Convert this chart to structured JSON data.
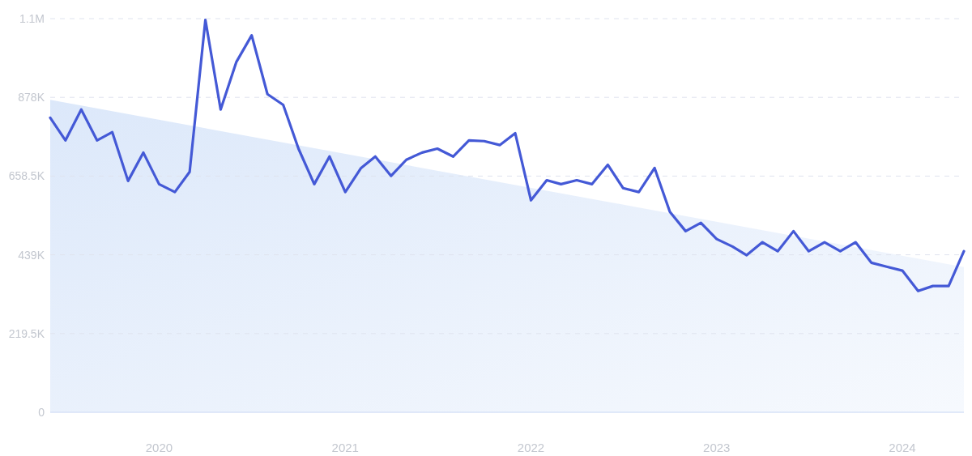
{
  "chart_data": {
    "type": "line",
    "x": [
      "2019-06",
      "2019-07",
      "2019-08",
      "2019-09",
      "2019-10",
      "2019-11",
      "2019-12",
      "2020-01",
      "2020-02",
      "2020-03",
      "2020-04",
      "2020-05",
      "2020-06",
      "2020-07",
      "2020-08",
      "2020-09",
      "2020-10",
      "2020-11",
      "2020-12",
      "2021-01",
      "2021-02",
      "2021-03",
      "2021-04",
      "2021-05",
      "2021-06",
      "2021-07",
      "2021-08",
      "2021-09",
      "2021-10",
      "2021-11",
      "2021-12",
      "2022-01",
      "2022-02",
      "2022-03",
      "2022-04",
      "2022-05",
      "2022-06",
      "2022-07",
      "2022-08",
      "2022-09",
      "2022-10",
      "2022-11",
      "2022-12",
      "2023-01",
      "2023-02",
      "2023-03",
      "2023-04",
      "2023-05",
      "2023-06",
      "2023-07",
      "2023-08",
      "2023-09",
      "2023-10",
      "2023-11",
      "2023-12",
      "2024-01",
      "2024-02",
      "2024-03",
      "2024-04",
      "2024-05"
    ],
    "series": [
      {
        "type": "area",
        "color": "#dce8fa",
        "x": [
          "2019-06",
          "2024-05"
        ],
        "values": [
          871000,
          405000
        ]
      },
      {
        "color": "#4459d6",
        "values": [
          821000,
          758000,
          844000,
          758000,
          781000,
          645000,
          724000,
          636000,
          614000,
          670000,
          1094000,
          844000,
          977000,
          1051000,
          887000,
          857000,
          735000,
          636000,
          713000,
          614000,
          681000,
          713000,
          659000,
          704000,
          724000,
          735000,
          713000,
          758000,
          756000,
          745000,
          778000,
          591000,
          647000,
          636000,
          647000,
          636000,
          690000,
          625000,
          614000,
          681000,
          559000,
          505000,
          528000,
          483000,
          462000,
          438000,
          474000,
          449000,
          505000,
          449000,
          474000,
          449000,
          474000,
          417000,
          406000,
          395000,
          338000,
          352000,
          352000,
          449000
        ]
      }
    ],
    "xlim": [
      "2019-06",
      "2024-05"
    ],
    "xticks": [
      "2020",
      "2021",
      "2022",
      "2023",
      "2024"
    ],
    "ylim": [
      0,
      1097500
    ],
    "yticks": [
      0,
      {
        "value": 219500,
        "label": "219.5K"
      },
      {
        "value": 439000,
        "label": "439K"
      },
      {
        "value": 658500,
        "label": "658.5K"
      },
      {
        "value": 878000,
        "label": "878K"
      },
      {
        "value": 1097500,
        "label": "1.1M"
      }
    ],
    "grid": "y",
    "line_style": "solid",
    "marker": "none"
  }
}
